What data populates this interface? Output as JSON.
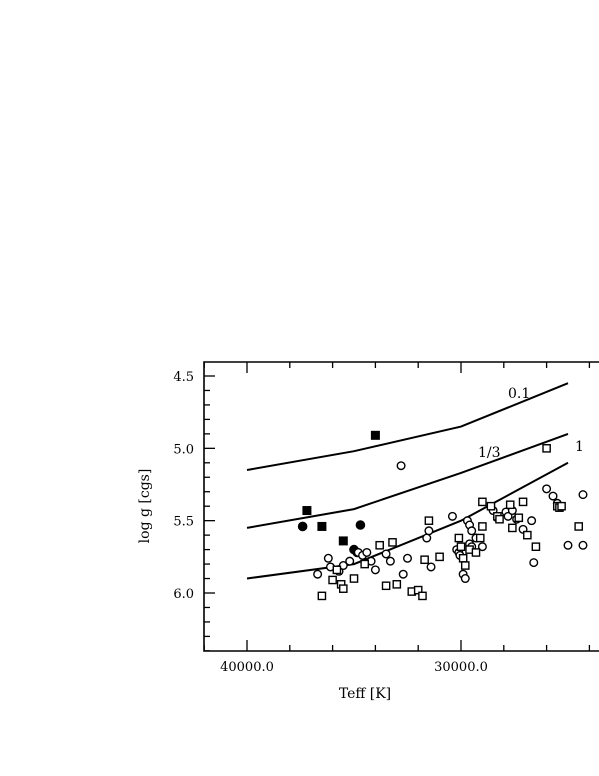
{
  "chart_data": {
    "type": "scatter",
    "xlabel": "Teff  [K]",
    "ylabel": "log  g  [cgs]",
    "x_reversed": true,
    "y_reversed": true,
    "xlim": [
      42000,
      24500
    ],
    "ylim": [
      4.42,
      6.4
    ],
    "x_ticks": [
      {
        "value": 40000,
        "label": "40000.0"
      },
      {
        "value": 30000,
        "label": "30000.0"
      }
    ],
    "y_ticks": [
      {
        "value": 4.5,
        "label": "4.5"
      },
      {
        "value": 5.0,
        "label": "5.0"
      },
      {
        "value": 5.5,
        "label": "5.5"
      },
      {
        "value": 6.0,
        "label": "6.0"
      }
    ],
    "curves": [
      {
        "name": "0.1",
        "points": [
          [
            40000,
            5.15
          ],
          [
            35000,
            5.02
          ],
          [
            30000,
            4.85
          ],
          [
            25000,
            4.55
          ]
        ]
      },
      {
        "name": "1/3",
        "points": [
          [
            40000,
            5.55
          ],
          [
            35000,
            5.42
          ],
          [
            30000,
            5.17
          ],
          [
            25000,
            4.9
          ]
        ]
      },
      {
        "name": "1",
        "points": [
          [
            40000,
            5.9
          ],
          [
            35000,
            5.8
          ],
          [
            30000,
            5.5
          ],
          [
            25000,
            5.1
          ]
        ]
      }
    ],
    "series": [
      {
        "marker": "filled-circle",
        "points": [
          [
            37400,
            5.54
          ],
          [
            34700,
            5.53
          ],
          [
            35000,
            5.7
          ],
          [
            34850,
            5.72
          ]
        ]
      },
      {
        "marker": "filled-square",
        "points": [
          [
            37200,
            5.43
          ],
          [
            36500,
            5.54
          ],
          [
            35500,
            5.64
          ],
          [
            34000,
            4.91
          ]
        ]
      },
      {
        "marker": "open-circle",
        "points": [
          [
            32800,
            5.12
          ],
          [
            36200,
            5.76
          ],
          [
            36100,
            5.82
          ],
          [
            35700,
            5.85
          ],
          [
            35500,
            5.81
          ],
          [
            36700,
            5.87
          ],
          [
            35200,
            5.78
          ],
          [
            34800,
            5.72
          ],
          [
            34600,
            5.74
          ],
          [
            34400,
            5.72
          ],
          [
            34200,
            5.78
          ],
          [
            34000,
            5.84
          ],
          [
            33500,
            5.73
          ],
          [
            33300,
            5.78
          ],
          [
            32700,
            5.87
          ],
          [
            32500,
            5.76
          ],
          [
            31600,
            5.62
          ],
          [
            31500,
            5.57
          ],
          [
            31400,
            5.82
          ],
          [
            30400,
            5.47
          ],
          [
            30200,
            5.7
          ],
          [
            30100,
            5.72
          ],
          [
            30050,
            5.74
          ],
          [
            29900,
            5.87
          ],
          [
            29800,
            5.9
          ],
          [
            29700,
            5.5
          ],
          [
            29600,
            5.53
          ],
          [
            29500,
            5.57
          ],
          [
            29600,
            5.66
          ],
          [
            29500,
            5.68
          ],
          [
            29300,
            5.62
          ],
          [
            29000,
            5.68
          ],
          [
            28500,
            5.43
          ],
          [
            28300,
            5.48
          ],
          [
            27900,
            5.44
          ],
          [
            27800,
            5.47
          ],
          [
            27600,
            5.43
          ],
          [
            27400,
            5.49
          ],
          [
            27100,
            5.56
          ],
          [
            26700,
            5.5
          ],
          [
            26600,
            5.79
          ],
          [
            26000,
            5.28
          ],
          [
            25700,
            5.33
          ],
          [
            25500,
            5.38
          ],
          [
            25400,
            5.4
          ],
          [
            25000,
            5.67
          ],
          [
            24300,
            5.32
          ],
          [
            24300,
            5.67
          ]
        ]
      },
      {
        "marker": "open-square",
        "points": [
          [
            36500,
            6.02
          ],
          [
            36000,
            5.91
          ],
          [
            35800,
            5.84
          ],
          [
            35600,
            5.94
          ],
          [
            35500,
            5.97
          ],
          [
            35000,
            5.9
          ],
          [
            34500,
            5.8
          ],
          [
            33800,
            5.67
          ],
          [
            33500,
            5.95
          ],
          [
            33200,
            5.65
          ],
          [
            33000,
            5.94
          ],
          [
            32300,
            5.99
          ],
          [
            32000,
            5.98
          ],
          [
            31800,
            6.02
          ],
          [
            31700,
            5.77
          ],
          [
            31500,
            5.5
          ],
          [
            31000,
            5.75
          ],
          [
            30100,
            5.62
          ],
          [
            30000,
            5.68
          ],
          [
            29900,
            5.76
          ],
          [
            29800,
            5.81
          ],
          [
            29600,
            5.7
          ],
          [
            29300,
            5.72
          ],
          [
            29100,
            5.62
          ],
          [
            29000,
            5.37
          ],
          [
            29000,
            5.54
          ],
          [
            28600,
            5.4
          ],
          [
            28300,
            5.47
          ],
          [
            28200,
            5.49
          ],
          [
            27700,
            5.39
          ],
          [
            27600,
            5.55
          ],
          [
            27300,
            5.48
          ],
          [
            27100,
            5.37
          ],
          [
            26900,
            5.6
          ],
          [
            26500,
            5.68
          ],
          [
            26000,
            5.0
          ],
          [
            25500,
            5.4
          ],
          [
            25400,
            5.41
          ],
          [
            25300,
            5.4
          ],
          [
            24500,
            5.54
          ]
        ]
      }
    ]
  }
}
